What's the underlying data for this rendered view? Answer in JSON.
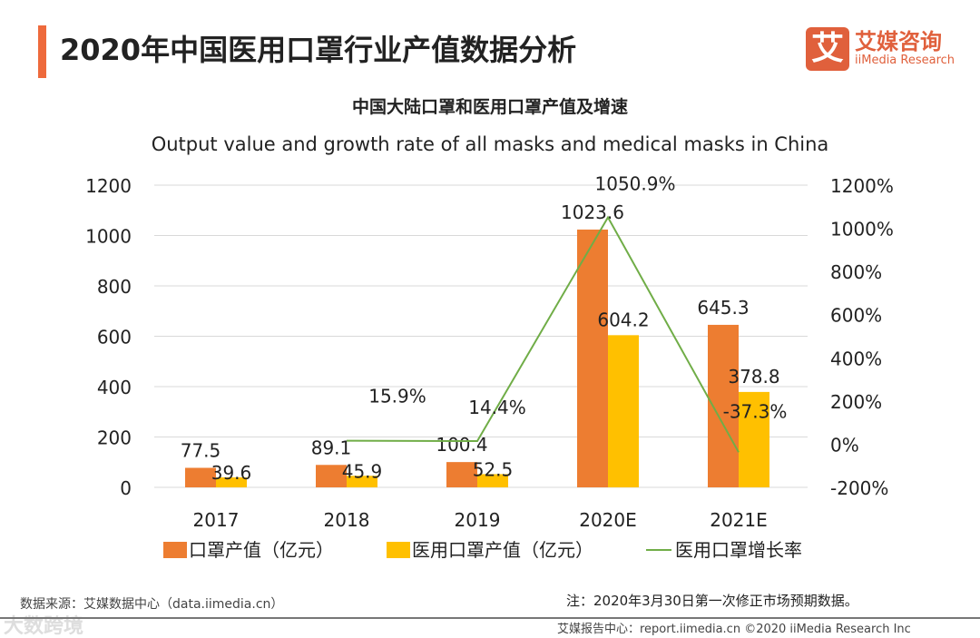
{
  "header": {
    "title": "2020年中国医用口罩行业产值数据分析",
    "logo_mark": "艾",
    "logo_cn": "艾媒咨询",
    "logo_en": "iiMedia Research"
  },
  "chart_data": {
    "type": "bar",
    "title": "中国大陆口罩和医用口罩产值及增速",
    "subtitle": "Output value and growth rate of all masks and medical masks in China",
    "categories": [
      "2017",
      "2018",
      "2019",
      "2020E",
      "2021E"
    ],
    "series": [
      {
        "name": "口罩产值（亿元）",
        "type": "bar",
        "axis": "left",
        "color": "#ed7d31",
        "values": [
          77.5,
          89.1,
          100.4,
          1023.6,
          645.3
        ]
      },
      {
        "name": "医用口罩产值（亿元）",
        "type": "bar",
        "axis": "left",
        "color": "#ffc000",
        "values": [
          39.6,
          45.9,
          52.5,
          604.2,
          378.8
        ]
      },
      {
        "name": "医用口罩增长率",
        "type": "line",
        "axis": "right",
        "color": "#70ad47",
        "values": [
          null,
          15.9,
          14.4,
          1050.9,
          -37.3
        ],
        "labels": [
          "",
          "15.9%",
          "14.4%",
          "1050.9%",
          "-37.3%"
        ]
      }
    ],
    "ylim": [
      0,
      1200
    ],
    "yticks": [
      "0",
      "200",
      "400",
      "600",
      "800",
      "1000",
      "1200"
    ],
    "y2lim": [
      -200,
      1200
    ],
    "y2ticks": [
      "-200%",
      "0%",
      "200%",
      "400%",
      "600%",
      "800%",
      "1000%",
      "1200%"
    ],
    "grid": true,
    "legend": "bottom"
  },
  "footer": {
    "source": "数据来源：艾媒数据中心（data.iimedia.cn）",
    "note": "注：2020年3月30日第一次修正市场预期数据。",
    "watermark": "大数跨境",
    "copyright": "艾媒报告中心：report.iimedia.cn  ©2020  iiMedia Research Inc"
  }
}
